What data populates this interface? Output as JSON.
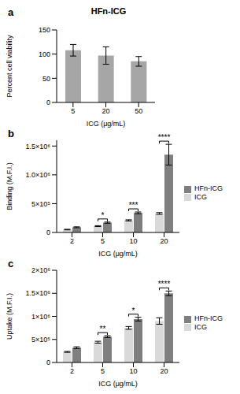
{
  "chart_data": [
    {
      "panel_label": "a",
      "type": "bar",
      "title": "HFn-ICG",
      "x_label": "ICG (μg/mL)",
      "y_label": "Percent cell viability",
      "categories": [
        "5",
        "20",
        "50"
      ],
      "values": [
        108,
        97,
        85
      ],
      "errors": [
        12,
        18,
        10
      ],
      "color": "#a6a6a6",
      "ylim": [
        0,
        150
      ],
      "yticks": [
        0,
        50,
        100,
        150
      ]
    },
    {
      "panel_label": "b",
      "type": "bar",
      "x_label": "ICG (μg/mL)",
      "y_label": "Binding (M.F.I.)",
      "categories": [
        "2",
        "5",
        "10",
        "20"
      ],
      "series": [
        {
          "name": "ICG",
          "color": "#d9d9d9",
          "values": [
            50000,
            110000,
            210000,
            330000
          ],
          "errors": [
            5000,
            8000,
            10000,
            15000
          ]
        },
        {
          "name": "HFn-ICG",
          "color": "#7f7f7f",
          "values": [
            90000,
            170000,
            340000,
            1350000
          ],
          "errors": [
            8000,
            10000,
            15000,
            180000
          ]
        }
      ],
      "ylim": [
        0,
        1600000
      ],
      "yticks": [
        0,
        {
          "value": 500000,
          "label": "5×10⁵"
        },
        {
          "value": 1000000,
          "label": "1.0×10⁶"
        },
        {
          "value": 1500000,
          "label": "1.5×10⁶"
        }
      ],
      "annotations": [
        {
          "category": "5",
          "text": "*"
        },
        {
          "category": "10",
          "text": "***"
        },
        {
          "category": "20",
          "text": "****"
        }
      ],
      "legend": "right"
    },
    {
      "panel_label": "c",
      "type": "bar",
      "x_label": "ICG (μg/mL)",
      "y_label": "Uptake (M.F.I.)",
      "categories": [
        "2",
        "5",
        "10",
        "20"
      ],
      "series": [
        {
          "name": "ICG",
          "color": "#d9d9d9",
          "values": [
            230000,
            440000,
            750000,
            900000
          ],
          "errors": [
            10000,
            20000,
            30000,
            70000
          ]
        },
        {
          "name": "HFn-ICG",
          "color": "#7f7f7f",
          "values": [
            320000,
            560000,
            940000,
            1500000
          ],
          "errors": [
            20000,
            20000,
            40000,
            50000
          ]
        }
      ],
      "ylim": [
        0,
        2000000
      ],
      "yticks": [
        0,
        {
          "value": 500000,
          "label": "5×10⁵"
        },
        {
          "value": 1000000,
          "label": "1×10⁶"
        },
        {
          "value": 1500000,
          "label": "1.5×10⁶"
        },
        {
          "value": 2000000,
          "label": "2×10⁶"
        }
      ],
      "annotations": [
        {
          "category": "5",
          "text": "**"
        },
        {
          "category": "10",
          "text": "*"
        },
        {
          "category": "20",
          "text": "****"
        }
      ],
      "legend": "right"
    }
  ]
}
